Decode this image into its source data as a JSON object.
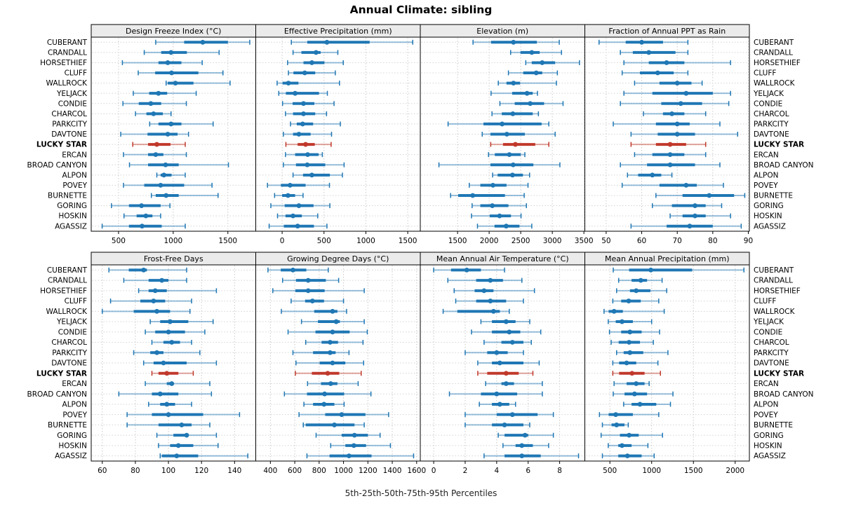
{
  "title": "Annual Climate: sibling",
  "caption": "5th-25th-50th-75th-95th Percentiles",
  "colors": {
    "series": "#1f77b4",
    "highlight": "#c0392b",
    "strip_bg": "#ebebeb",
    "panel_border": "#000000",
    "grid": "#c9c9c9",
    "row_guide": "#d4d4d4"
  },
  "stations": [
    "CUBERANT",
    "CRANDALL",
    "HORSETHIEF",
    "CLUFF",
    "WALLROCK",
    "YELJACK",
    "CONDIE",
    "CHARCOL",
    "PARKCITY",
    "DAVTONE",
    "LUCKY STAR",
    "ERCAN",
    "BROAD CANYON",
    "ALPON",
    "POVEY",
    "BURNETTE",
    "GORING",
    "HOSKIN",
    "AGASSIZ"
  ],
  "highlight_station": "LUCKY STAR",
  "highlight_index": 10,
  "chart_data": {
    "type": "percentile-whisker-trellis",
    "percentile_labels": [
      "5th",
      "25th",
      "50th",
      "75th",
      "95th"
    ],
    "grid": "dotted",
    "panels": [
      {
        "title": "Design Freeze Index (°C)",
        "row": 0,
        "col": 0,
        "ticks": [
          500,
          1000,
          1500
        ],
        "xmin": 250,
        "xmax": 1755,
        "values": [
          [
            840,
            1100,
            1270,
            1500,
            1700
          ],
          [
            735,
            890,
            980,
            1125,
            1420
          ],
          [
            535,
            865,
            950,
            1075,
            1265
          ],
          [
            680,
            835,
            985,
            1230,
            1455
          ],
          [
            935,
            950,
            1020,
            1185,
            1520
          ],
          [
            635,
            780,
            865,
            945,
            1210
          ],
          [
            540,
            685,
            795,
            890,
            1120
          ],
          [
            655,
            755,
            820,
            905,
            980
          ],
          [
            785,
            865,
            980,
            1075,
            1365
          ],
          [
            520,
            765,
            950,
            1040,
            1140
          ],
          [
            630,
            770,
            850,
            975,
            1110
          ],
          [
            545,
            770,
            840,
            910,
            1120
          ],
          [
            600,
            770,
            930,
            1050,
            1505
          ],
          [
            850,
            885,
            915,
            985,
            1110
          ],
          [
            545,
            735,
            885,
            1100,
            1355
          ],
          [
            800,
            840,
            935,
            1050,
            1410
          ],
          [
            435,
            595,
            710,
            885,
            970
          ],
          [
            550,
            665,
            750,
            810,
            885
          ],
          [
            350,
            595,
            715,
            895,
            1110
          ]
        ]
      },
      {
        "title": "Effective Precipitation (mm)",
        "row": 0,
        "col": 1,
        "ticks": [
          0,
          500,
          1000,
          1500
        ],
        "xmin": -315,
        "xmax": 1650,
        "values": [
          [
            110,
            300,
            535,
            1045,
            1560
          ],
          [
            130,
            230,
            405,
            460,
            665
          ],
          [
            65,
            255,
            355,
            505,
            730
          ],
          [
            75,
            135,
            270,
            395,
            635
          ],
          [
            -60,
            5,
            75,
            195,
            685
          ],
          [
            -40,
            45,
            155,
            440,
            540
          ],
          [
            5,
            125,
            255,
            385,
            620
          ],
          [
            40,
            130,
            255,
            395,
            530
          ],
          [
            100,
            175,
            245,
            370,
            695
          ],
          [
            15,
            130,
            200,
            340,
            590
          ],
          [
            45,
            185,
            280,
            390,
            585
          ],
          [
            40,
            155,
            305,
            435,
            480
          ],
          [
            15,
            165,
            300,
            515,
            740
          ],
          [
            130,
            250,
            355,
            570,
            720
          ],
          [
            -175,
            -15,
            95,
            280,
            565
          ],
          [
            -90,
            0,
            70,
            155,
            250
          ],
          [
            -135,
            30,
            200,
            375,
            570
          ],
          [
            -55,
            40,
            130,
            235,
            425
          ],
          [
            -155,
            20,
            185,
            380,
            535
          ]
        ]
      },
      {
        "title": "Elevation (m)",
        "row": 0,
        "col": 2,
        "ticks": [
          1500,
          2000,
          2500,
          3000,
          3500
        ],
        "xmin": 910,
        "xmax": 3515,
        "values": [
          [
            1745,
            2030,
            2385,
            2755,
            3110
          ],
          [
            2340,
            2495,
            2675,
            2800,
            3145
          ],
          [
            2580,
            2675,
            2840,
            3045,
            3430
          ],
          [
            2305,
            2540,
            2745,
            2840,
            3080
          ],
          [
            2145,
            2275,
            2385,
            2490,
            3065
          ],
          [
            2030,
            2365,
            2600,
            2690,
            2765
          ],
          [
            2170,
            2405,
            2650,
            2870,
            3170
          ],
          [
            2045,
            2200,
            2375,
            2690,
            2780
          ],
          [
            1350,
            1910,
            2205,
            2830,
            2945
          ],
          [
            1890,
            2020,
            2280,
            2565,
            3045
          ],
          [
            2025,
            2220,
            2415,
            2730,
            2945
          ],
          [
            1990,
            2090,
            2320,
            2500,
            2565
          ],
          [
            1205,
            2020,
            2380,
            2700,
            3120
          ],
          [
            2055,
            2135,
            2370,
            2535,
            2640
          ],
          [
            1685,
            1860,
            2060,
            2275,
            2615
          ],
          [
            1390,
            1510,
            1740,
            2250,
            2555
          ],
          [
            1730,
            1860,
            2050,
            2305,
            2590
          ],
          [
            1720,
            2010,
            2165,
            2345,
            2505
          ],
          [
            1815,
            2085,
            2270,
            2480,
            2675
          ]
        ]
      },
      {
        "title": "Fraction of Annual PPT as Rain",
        "row": 0,
        "col": 3,
        "ticks": [
          50,
          60,
          70,
          80,
          90
        ],
        "xmin": 44,
        "xmax": 90.3,
        "values": [
          [
            48,
            55.5,
            60,
            66,
            73
          ],
          [
            54,
            57.5,
            62,
            69.5,
            73
          ],
          [
            55,
            62,
            67,
            72,
            85
          ],
          [
            54.5,
            59.5,
            64.5,
            69,
            73
          ],
          [
            58,
            65,
            70,
            74,
            77
          ],
          [
            55,
            63,
            72.5,
            80,
            85
          ],
          [
            54,
            65.5,
            71,
            77,
            84.5
          ],
          [
            60.5,
            66,
            68.5,
            72,
            78
          ],
          [
            52,
            64,
            70,
            73.5,
            82
          ],
          [
            57,
            64.5,
            70,
            75,
            87
          ],
          [
            57,
            64,
            68,
            72.5,
            78
          ],
          [
            58,
            63,
            68,
            72,
            78
          ],
          [
            54,
            61.5,
            68,
            75,
            82
          ],
          [
            56,
            59,
            63,
            65.5,
            68.5
          ],
          [
            54.5,
            65,
            72.5,
            75.5,
            83
          ],
          [
            64,
            71.5,
            79,
            86,
            89
          ],
          [
            63,
            68.5,
            75,
            78,
            82.5
          ],
          [
            68,
            71.5,
            75,
            78,
            85
          ],
          [
            57,
            67,
            73.5,
            80,
            88
          ]
        ]
      },
      {
        "title": "Frost-Free Days",
        "row": 1,
        "col": 0,
        "ticks": [
          60,
          80,
          100,
          120,
          140
        ],
        "xmin": 53.3,
        "xmax": 152.8,
        "values": [
          [
            64,
            76,
            85,
            87,
            111
          ],
          [
            73,
            88,
            96,
            100,
            111
          ],
          [
            82,
            88,
            92,
            99,
            129
          ],
          [
            65,
            83,
            91,
            98,
            114
          ],
          [
            60,
            79,
            93,
            101,
            113
          ],
          [
            89,
            95,
            101,
            112,
            127
          ],
          [
            86,
            92,
            100,
            110,
            122
          ],
          [
            90,
            97,
            102,
            107,
            114
          ],
          [
            79,
            89,
            93,
            97,
            119
          ],
          [
            85,
            91,
            97,
            111,
            129
          ],
          [
            90,
            94,
            99,
            106,
            115
          ],
          [
            86,
            99,
            102,
            103,
            125
          ],
          [
            70,
            90,
            95,
            106,
            126
          ],
          [
            88,
            95,
            99,
            104,
            114
          ],
          [
            75,
            90,
            100,
            121,
            143
          ],
          [
            75,
            94,
            108,
            114,
            125
          ],
          [
            93,
            103,
            111,
            112,
            129
          ],
          [
            94,
            101,
            106,
            115,
            130
          ],
          [
            95,
            96,
            105,
            118,
            148
          ]
        ]
      },
      {
        "title": "Growing Degree Days (°C)",
        "row": 1,
        "col": 1,
        "ticks": [
          400,
          600,
          800,
          1000,
          1200,
          1400,
          1600
        ],
        "xmin": 280,
        "xmax": 1630,
        "values": [
          [
            380,
            485,
            585,
            695,
            875
          ],
          [
            500,
            610,
            710,
            855,
            960
          ],
          [
            420,
            605,
            710,
            845,
            1170
          ],
          [
            570,
            685,
            745,
            840,
            1000
          ],
          [
            490,
            760,
            910,
            950,
            1025
          ],
          [
            655,
            790,
            940,
            970,
            1170
          ],
          [
            545,
            770,
            910,
            1050,
            1195
          ],
          [
            690,
            820,
            890,
            955,
            1160
          ],
          [
            585,
            750,
            890,
            935,
            1045
          ],
          [
            610,
            805,
            910,
            1015,
            1165
          ],
          [
            605,
            740,
            870,
            965,
            1145
          ],
          [
            705,
            815,
            895,
            950,
            1120
          ],
          [
            515,
            700,
            845,
            1005,
            1225
          ],
          [
            675,
            750,
            840,
            925,
            1005
          ],
          [
            635,
            850,
            985,
            1180,
            1370
          ],
          [
            670,
            690,
            925,
            1090,
            1170
          ],
          [
            775,
            985,
            1090,
            1200,
            1300
          ],
          [
            895,
            1015,
            1085,
            1185,
            1385
          ],
          [
            700,
            885,
            1045,
            1230,
            1575
          ]
        ]
      },
      {
        "title": "Mean Annual Air Temperature (°C)",
        "row": 1,
        "col": 2,
        "ticks": [
          0,
          2,
          4,
          6,
          8
        ],
        "xmin": -0.85,
        "xmax": 9.6,
        "values": [
          [
            0.0,
            1.1,
            2.1,
            3.0,
            4.5
          ],
          [
            0.9,
            2.7,
            3.6,
            4.4,
            5.6
          ],
          [
            1.3,
            2.6,
            3.2,
            3.8,
            6.4
          ],
          [
            1.4,
            2.7,
            3.6,
            4.6,
            5.7
          ],
          [
            0.6,
            1.5,
            3.8,
            4.2,
            4.8
          ],
          [
            3.0,
            3.7,
            4.6,
            5.2,
            6.1
          ],
          [
            2.4,
            3.7,
            4.8,
            5.5,
            6.8
          ],
          [
            3.2,
            4.3,
            5.0,
            5.7,
            6.2
          ],
          [
            2.0,
            3.4,
            4.0,
            4.7,
            5.7
          ],
          [
            2.8,
            3.7,
            4.2,
            5.7,
            6.7
          ],
          [
            2.8,
            3.4,
            4.6,
            5.4,
            6.3
          ],
          [
            3.3,
            4.3,
            4.6,
            5.1,
            6.9
          ],
          [
            1.0,
            3.0,
            4.0,
            5.3,
            6.9
          ],
          [
            2.9,
            3.7,
            4.2,
            4.8,
            5.2
          ],
          [
            2.0,
            4.0,
            5.0,
            6.6,
            7.6
          ],
          [
            2.0,
            3.7,
            4.5,
            5.7,
            6.1
          ],
          [
            4.1,
            4.5,
            5.8,
            6.0,
            7.6
          ],
          [
            4.4,
            5.2,
            5.6,
            6.3,
            7.3
          ],
          [
            3.2,
            4.5,
            5.6,
            6.8,
            9.2
          ]
        ]
      },
      {
        "title": "Mean Annual Precipitation (mm)",
        "row": 1,
        "col": 3,
        "ticks": [
          500,
          1000,
          1500,
          2000
        ],
        "xmin": 200,
        "xmax": 2170,
        "values": [
          [
            540,
            730,
            990,
            1485,
            2105
          ],
          [
            605,
            760,
            870,
            945,
            1125
          ],
          [
            580,
            740,
            815,
            985,
            1180
          ],
          [
            535,
            635,
            725,
            870,
            1085
          ],
          [
            430,
            485,
            550,
            655,
            1150
          ],
          [
            480,
            570,
            645,
            775,
            1000
          ],
          [
            495,
            635,
            740,
            880,
            1095
          ],
          [
            515,
            605,
            730,
            860,
            1020
          ],
          [
            580,
            665,
            740,
            900,
            1195
          ],
          [
            535,
            610,
            700,
            815,
            1075
          ],
          [
            535,
            610,
            765,
            915,
            1105
          ],
          [
            550,
            700,
            815,
            915,
            970
          ],
          [
            540,
            675,
            795,
            945,
            1255
          ],
          [
            665,
            760,
            860,
            1055,
            1225
          ],
          [
            375,
            485,
            570,
            775,
            1085
          ],
          [
            410,
            520,
            580,
            675,
            720
          ],
          [
            395,
            620,
            730,
            845,
            1130
          ],
          [
            480,
            600,
            645,
            760,
            955
          ],
          [
            410,
            600,
            710,
            880,
            1030
          ]
        ]
      }
    ]
  }
}
